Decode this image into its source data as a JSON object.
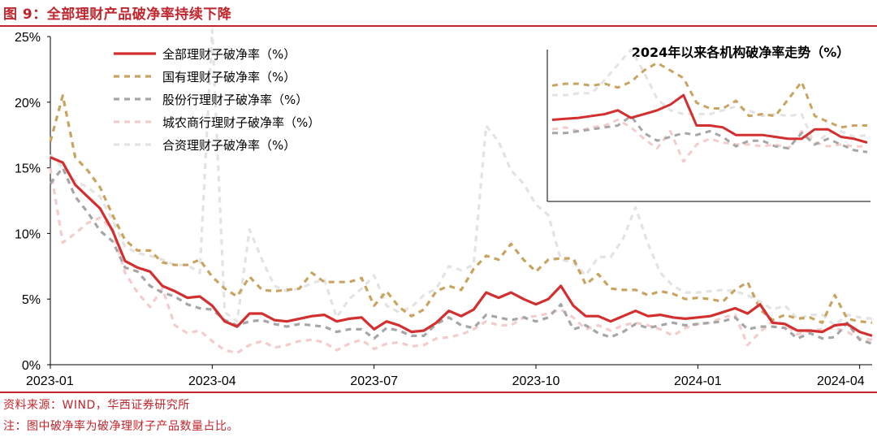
{
  "figure": {
    "title": "图 9：全部理财产品破净率持续下降",
    "source": "资料来源：WIND，华西证券研究所",
    "note": "注：图中破净率为破净理财子产品数量占比。"
  },
  "colors": {
    "accent": "#c0262d",
    "all": "#d32f2f",
    "state": "#c9a461",
    "joint_stock": "#a6a6a6",
    "rural": "#f4cccc",
    "foreign": "#e3e3e3"
  },
  "chart_data": [
    {
      "type": "line",
      "title": "",
      "xlabel": "",
      "ylabel": "",
      "ylim": [
        0,
        25
      ],
      "y_ticks": [
        "0%",
        "5%",
        "10%",
        "15%",
        "20%",
        "25%"
      ],
      "x_tick_labels": [
        "2023-01",
        "2023-04",
        "2023-07",
        "2023-10",
        "2024-01",
        "2024-04"
      ],
      "x_tick_positions": [
        0,
        13,
        26,
        39,
        52,
        65
      ],
      "grid": false,
      "legend": "top-left",
      "series": [
        {
          "name": "全部理财子破净率（%）",
          "color": "#d32f2f",
          "dash": "solid",
          "values": [
            15.8,
            15.4,
            13.7,
            12.8,
            11.9,
            10.2,
            7.9,
            7.4,
            7.1,
            6.0,
            5.6,
            5.1,
            5.2,
            4.5,
            3.3,
            2.9,
            3.9,
            3.9,
            3.4,
            3.3,
            3.5,
            3.7,
            3.8,
            3.3,
            3.5,
            3.6,
            2.7,
            3.3,
            3.0,
            2.5,
            2.6,
            3.2,
            4.1,
            3.7,
            4.2,
            5.5,
            5.1,
            5.5,
            5.0,
            4.6,
            5.0,
            6.0,
            4.5,
            3.7,
            3.7,
            3.3,
            3.7,
            4.1,
            3.7,
            3.8,
            3.6,
            3.5,
            3.6,
            3.7,
            4.0,
            4.3,
            3.9,
            4.6,
            3.2,
            3.1,
            2.6,
            2.6,
            2.5,
            3.0,
            3.1,
            2.5,
            2.2
          ]
        },
        {
          "name": "国有理财子破净率（%）",
          "color": "#c9a461",
          "dash": "7,6",
          "values": [
            17.0,
            20.5,
            15.8,
            14.8,
            13.5,
            11.4,
            9.5,
            8.7,
            8.7,
            7.8,
            7.6,
            7.6,
            8.0,
            6.7,
            5.8,
            5.2,
            6.7,
            5.7,
            5.6,
            5.7,
            5.8,
            7.0,
            6.3,
            6.3,
            6.3,
            6.6,
            4.5,
            5.6,
            4.4,
            3.7,
            4.2,
            5.6,
            6.0,
            5.7,
            7.3,
            8.3,
            8.0,
            9.2,
            8.0,
            7.1,
            8.0,
            8.1,
            8.1,
            6.1,
            6.9,
            5.8,
            5.7,
            5.7,
            5.3,
            5.6,
            5.4,
            5.0,
            5.1,
            5.0,
            4.8,
            5.7,
            6.3,
            4.2,
            3.4,
            3.8,
            3.5,
            3.6,
            3.2,
            5.3,
            3.5,
            3.3,
            3.2
          ]
        },
        {
          "name": "股份行理财子破净率（%）",
          "color": "#a6a6a6",
          "dash": "7,6",
          "values": [
            13.8,
            15.0,
            12.8,
            11.6,
            10.2,
            9.4,
            7.4,
            7.1,
            6.0,
            5.5,
            5.2,
            4.6,
            4.3,
            4.2,
            3.4,
            3.0,
            3.3,
            3.4,
            3.1,
            2.9,
            3.1,
            3.0,
            2.9,
            2.5,
            2.7,
            2.7,
            2.0,
            2.8,
            2.6,
            2.2,
            2.2,
            3.1,
            3.6,
            3.0,
            2.8,
            3.8,
            3.6,
            3.4,
            3.6,
            3.3,
            3.6,
            4.6,
            2.7,
            3.0,
            2.4,
            2.1,
            2.5,
            3.1,
            2.8,
            3.0,
            3.2,
            3.0,
            3.1,
            3.2,
            3.3,
            3.6,
            2.7,
            2.9,
            2.9,
            2.8,
            2.0,
            2.4,
            2.0,
            2.1,
            3.2,
            1.9,
            1.6
          ]
        },
        {
          "name": "城农商行理财子破净率（%）",
          "color": "#f4cccc",
          "dash": "7,6",
          "values": [
            15.0,
            9.3,
            10.0,
            10.8,
            11.2,
            10.3,
            7.0,
            5.5,
            4.4,
            5.8,
            3.0,
            2.4,
            2.6,
            1.8,
            1.1,
            0.9,
            1.5,
            1.8,
            1.3,
            1.5,
            1.8,
            1.9,
            1.7,
            1.1,
            1.6,
            1.9,
            1.2,
            1.6,
            1.7,
            1.4,
            1.5,
            2.0,
            2.1,
            2.3,
            2.7,
            3.3,
            3.0,
            3.0,
            3.6,
            3.7,
            3.9,
            4.2,
            3.6,
            2.7,
            3.0,
            2.6,
            3.0,
            3.2,
            3.0,
            2.7,
            2.2,
            2.8,
            3.1,
            3.2,
            3.6,
            3.8,
            1.5,
            2.5,
            3.3,
            3.1,
            2.3,
            2.6,
            2.7,
            2.8,
            2.5,
            2.0,
            1.9
          ]
        },
        {
          "name": "合资理财子破净率（%）",
          "color": "#e3e3e3",
          "dash": "7,6",
          "values": [
            16.0,
            15.0,
            14.0,
            13.5,
            12.8,
            11.0,
            9.0,
            8.5,
            8.3,
            8.0,
            7.6,
            7.6,
            7.0,
            25.5,
            4.0,
            3.3,
            10.3,
            8.0,
            6.0,
            5.6,
            5.8,
            6.2,
            6.5,
            3.6,
            5.0,
            5.8,
            6.8,
            4.5,
            4.0,
            4.4,
            5.3,
            5.8,
            7.5,
            7.2,
            7.6,
            18.2,
            17.0,
            14.8,
            13.8,
            12.2,
            11.4,
            8.0,
            7.8,
            6.8,
            8.2,
            8.2,
            9.6,
            12.0,
            9.2,
            7.0,
            6.0,
            5.5,
            5.5,
            5.6,
            5.7,
            5.6,
            5.3,
            4.8,
            4.2,
            4.5,
            3.5,
            3.8,
            3.8,
            3.0,
            3.8,
            3.6,
            3.5
          ]
        }
      ]
    },
    {
      "type": "line",
      "title": "2024年以来各机构破净率走势（%）",
      "xlabel": "",
      "ylabel": "",
      "ylim": [
        0,
        8
      ],
      "grid": false,
      "series": [
        {
          "name": "全部理财子破净率（%）",
          "color": "#d32f2f",
          "dash": "solid",
          "values": [
            4.3,
            4.35,
            4.4,
            4.5,
            4.6,
            4.8,
            4.4,
            4.6,
            4.8,
            5.1,
            5.6,
            4.0,
            4.0,
            3.9,
            3.5,
            3.5,
            3.5,
            3.4,
            3.3,
            3.3,
            3.8,
            3.8,
            3.4,
            3.3,
            3.1
          ]
        },
        {
          "name": "国有理财子破净率（%）",
          "color": "#c9a461",
          "dash": "7,6",
          "values": [
            6.1,
            6.2,
            6.2,
            6.1,
            6.2,
            6.0,
            6.3,
            6.9,
            7.3,
            6.9,
            6.5,
            5.2,
            4.9,
            4.9,
            5.3,
            4.5,
            4.6,
            4.5,
            5.4,
            6.3,
            4.5,
            4.2,
            3.9,
            4.0,
            4.0
          ]
        },
        {
          "name": "股份行理财子破净率（%）",
          "color": "#a6a6a6",
          "dash": "7,6",
          "values": [
            3.6,
            3.6,
            3.7,
            3.8,
            3.9,
            4.0,
            4.5,
            3.6,
            3.2,
            3.4,
            3.6,
            3.5,
            3.7,
            3.4,
            2.9,
            3.2,
            3.2,
            2.9,
            2.8,
            3.6,
            3.0,
            3.3,
            3.0,
            2.7,
            2.6
          ]
        },
        {
          "name": "城农商行理财子破净率（%）",
          "color": "#f4cccc",
          "dash": "7,6",
          "values": [
            3.8,
            3.9,
            3.7,
            3.9,
            4.0,
            4.3,
            3.9,
            3.3,
            2.8,
            3.7,
            2.1,
            3.0,
            3.3,
            3.1,
            3.0,
            3.0,
            2.9,
            3.0,
            2.8,
            3.7,
            3.1,
            2.9,
            3.0,
            2.9,
            2.9
          ]
        },
        {
          "name": "合资理财子破净率（%）",
          "color": "#e3e3e3",
          "dash": "7,6",
          "values": [
            5.6,
            5.6,
            5.7,
            5.7,
            6.4,
            7.2,
            8.0,
            6.8,
            5.4,
            4.8,
            4.6,
            4.6,
            4.6,
            4.8,
            5.0,
            4.8,
            4.5,
            4.6,
            4.5,
            4.6,
            3.0,
            3.6,
            3.7,
            3.4,
            3.5
          ]
        }
      ]
    }
  ]
}
